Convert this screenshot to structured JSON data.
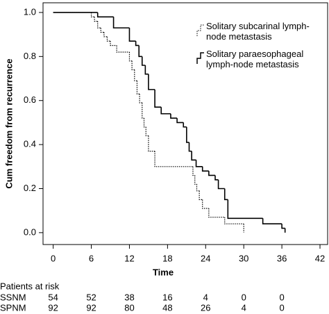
{
  "chart_data": {
    "type": "step",
    "xlabel": "Time",
    "ylabel": "Cum freedom from recurrence",
    "xlim": [
      -1.6,
      43.2
    ],
    "ylim": [
      -0.054,
      1.044
    ],
    "xticks": [
      0,
      6,
      12,
      18,
      24,
      30,
      36,
      42
    ],
    "yticks": [
      {
        "value": 0,
        "label": "0.0"
      },
      {
        "value": 0.2,
        "label": "0.2"
      },
      {
        "value": 0.4,
        "label": "0.4"
      },
      {
        "value": 0.6,
        "label": "0.6"
      },
      {
        "value": 0.8,
        "label": "0.8"
      },
      {
        "value": 1,
        "label": "1.0"
      }
    ],
    "series": [
      {
        "name": "Solitary subcarinal lymph-node metastasis",
        "color": "#000000",
        "dash": "dotted",
        "x": [
          0,
          6,
          6.5,
          7,
          7.5,
          8,
          8.5,
          9,
          10,
          12,
          12.4,
          12.8,
          13.2,
          13.6,
          14,
          14.3,
          14.6,
          15,
          16,
          22,
          22.3,
          22.6,
          23,
          23.5,
          24.5,
          27,
          30
        ],
        "values": [
          1,
          0.98,
          0.96,
          0.93,
          0.91,
          0.89,
          0.87,
          0.85,
          0.82,
          0.78,
          0.74,
          0.69,
          0.63,
          0.59,
          0.52,
          0.48,
          0.44,
          0.37,
          0.3,
          0.26,
          0.22,
          0.19,
          0.15,
          0.11,
          0.07,
          0.04,
          0
        ]
      },
      {
        "name": "Solitary paraesophageal lymph-node metastasis",
        "color": "#000000",
        "dash": "solid",
        "x": [
          0,
          7,
          9.5,
          12,
          13,
          13.5,
          14,
          14.5,
          15,
          16,
          17,
          18.5,
          19.5,
          20.5,
          21,
          21.4,
          21.8,
          22.5,
          23.5,
          24.5,
          25.5,
          26,
          27,
          27.5,
          33,
          36,
          36.5
        ],
        "values": [
          1,
          0.98,
          0.93,
          0.87,
          0.85,
          0.8,
          0.76,
          0.72,
          0.65,
          0.57,
          0.54,
          0.52,
          0.5,
          0.48,
          0.41,
          0.37,
          0.33,
          0.3,
          0.28,
          0.26,
          0.24,
          0.2,
          0.15,
          0.065,
          0.04,
          0.02,
          0
        ]
      }
    ],
    "risk_table": {
      "title": "Patients at risk",
      "rows": [
        {
          "name": "SSNM",
          "values": [
            54,
            52,
            38,
            16,
            4,
            0,
            0
          ]
        },
        {
          "name": "SPNM",
          "values": [
            92,
            92,
            80,
            48,
            26,
            4,
            0
          ]
        }
      ]
    }
  }
}
